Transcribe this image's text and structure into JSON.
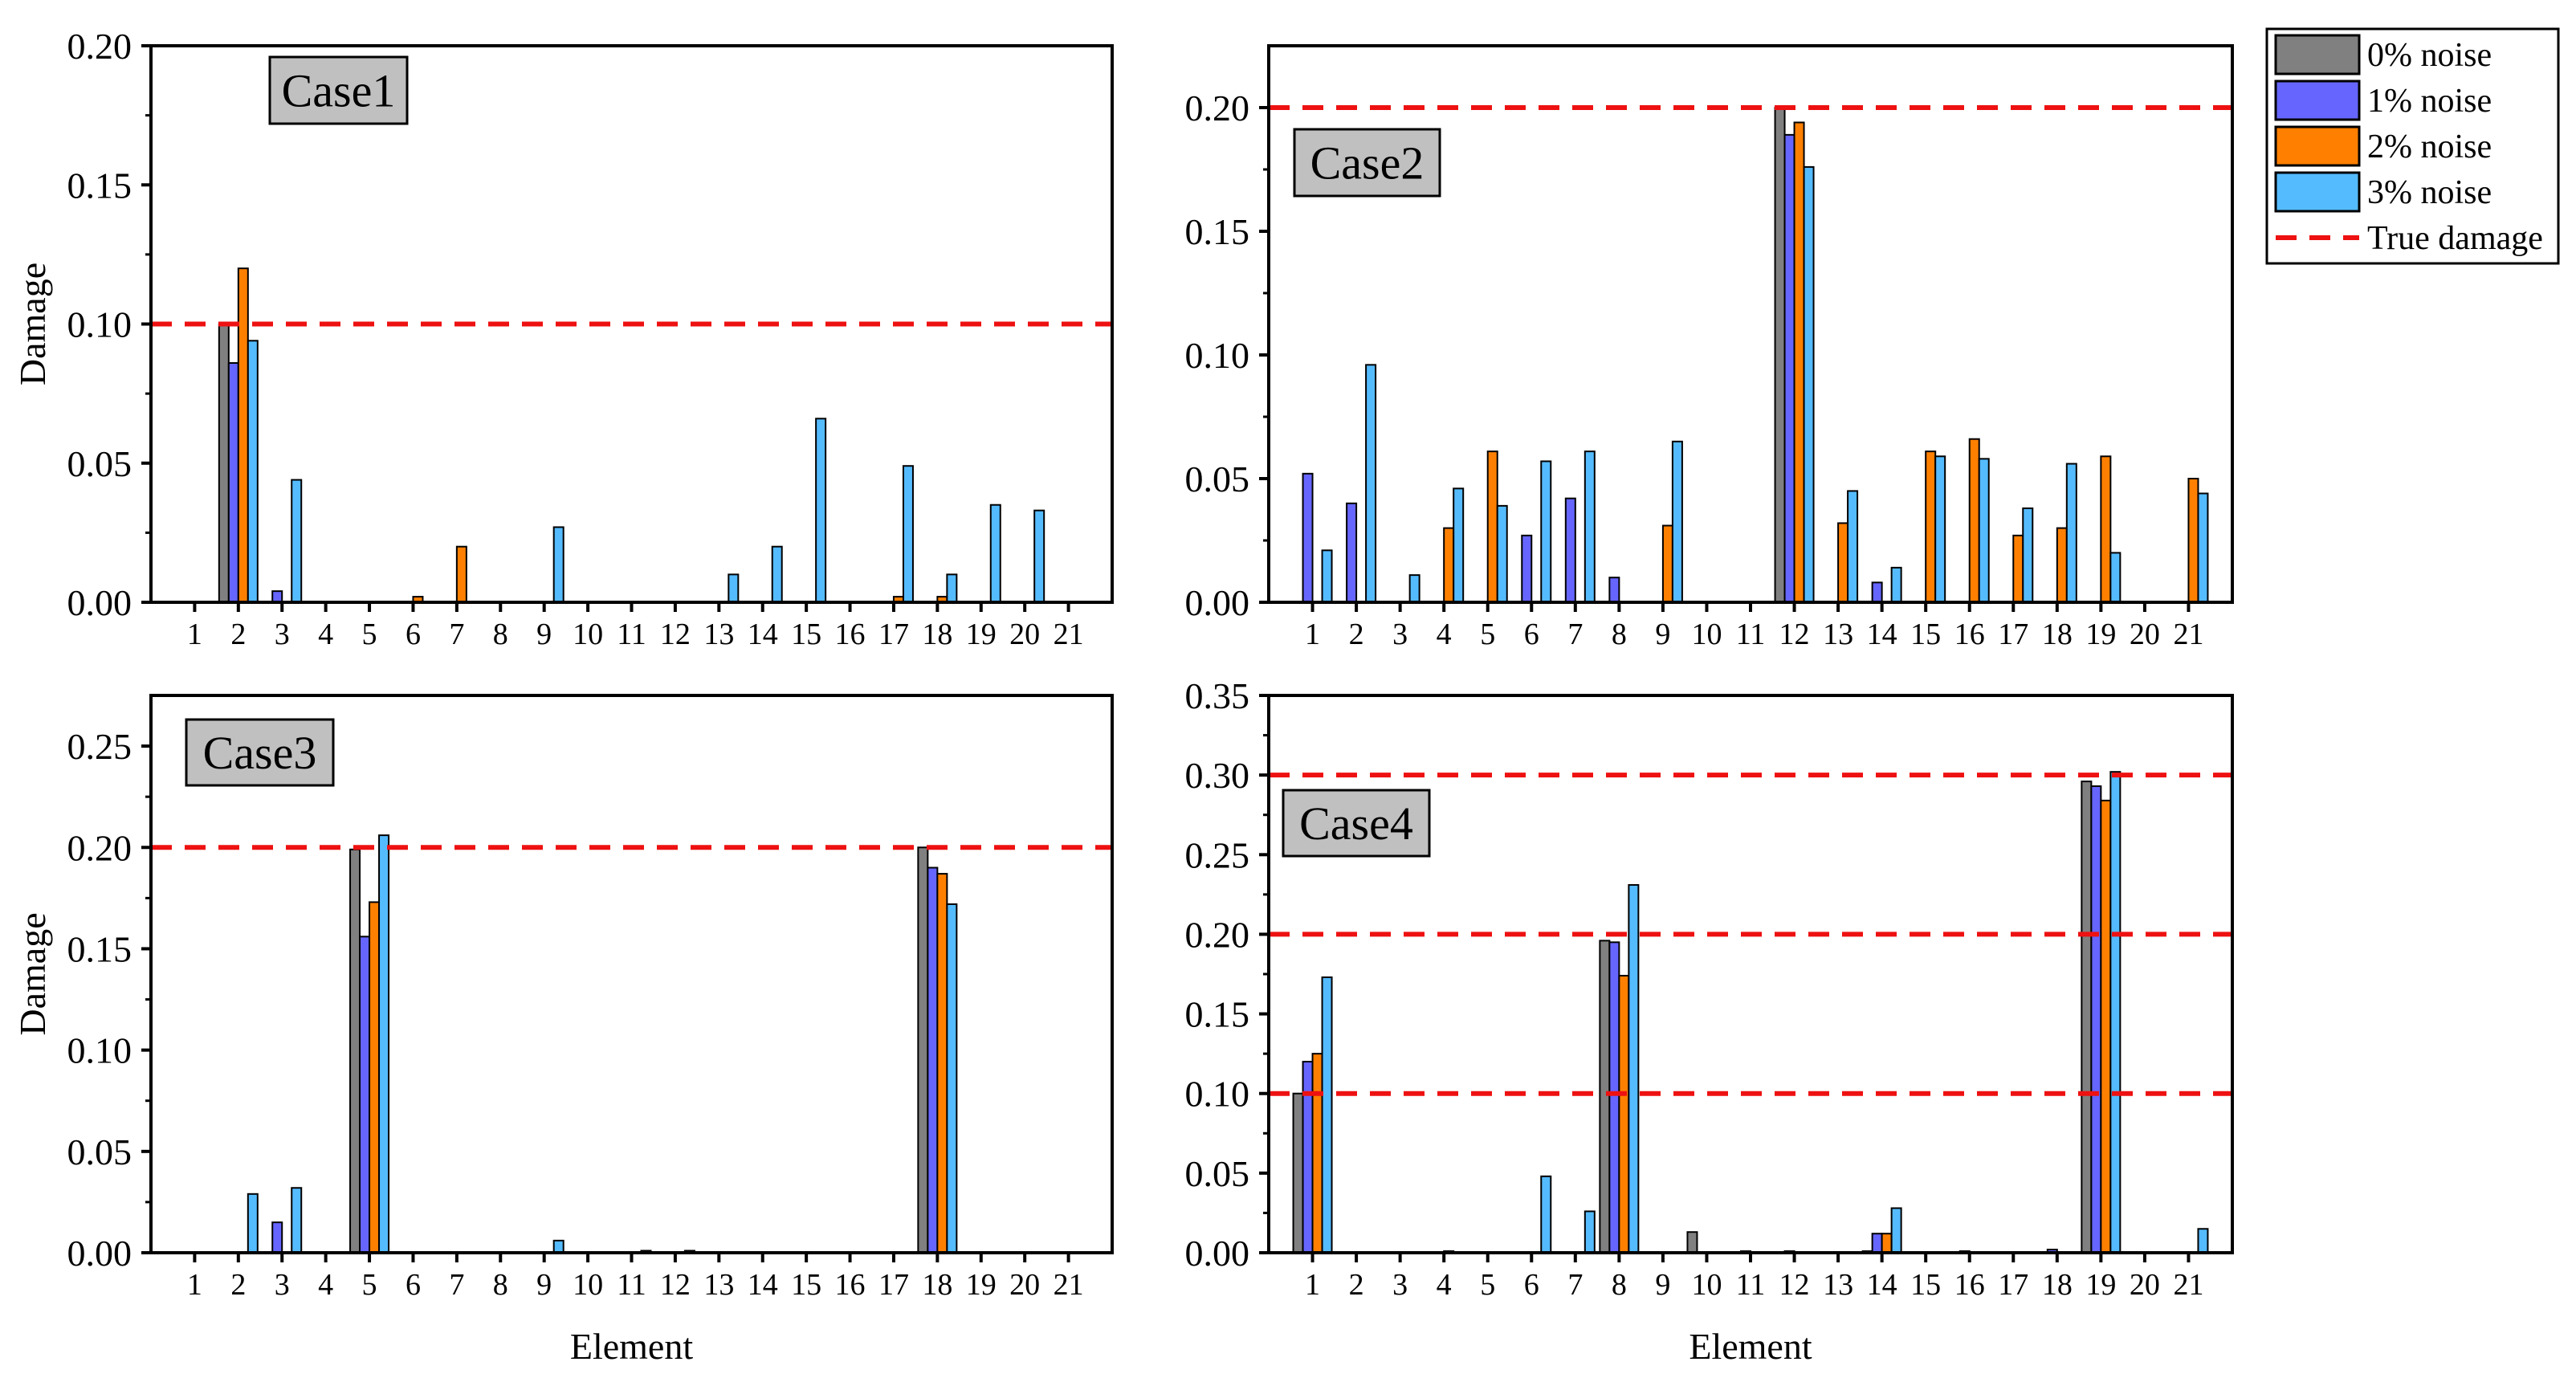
{
  "chart_data": [
    {
      "type": "bar",
      "panel": "top-left",
      "title": "Case1",
      "xlabel": "",
      "ylabel": "Damage",
      "ylim": [
        0,
        0.2
      ],
      "yticks": [
        0.0,
        0.05,
        0.1,
        0.15,
        0.2
      ],
      "ytick_labels": [
        "0.00",
        "0.05",
        "0.10",
        "0.15",
        "0.20"
      ],
      "categories": [
        "1",
        "2",
        "3",
        "4",
        "5",
        "6",
        "7",
        "8",
        "9",
        "10",
        "11",
        "12",
        "13",
        "14",
        "15",
        "16",
        "17",
        "18",
        "19",
        "20",
        "21"
      ],
      "true_damage": [
        0.1
      ],
      "series": [
        {
          "name": "0% noise",
          "values": [
            0,
            0.1,
            0,
            0,
            0,
            0,
            0,
            0,
            0,
            0,
            0,
            0,
            0,
            0,
            0,
            0,
            0,
            0,
            0,
            0,
            0
          ]
        },
        {
          "name": "1% noise",
          "values": [
            0,
            0.086,
            0.004,
            0,
            0,
            0,
            0,
            0,
            0,
            0,
            0,
            0,
            0,
            0,
            0,
            0,
            0,
            0,
            0,
            0,
            0
          ]
        },
        {
          "name": "2% noise",
          "values": [
            0,
            0.12,
            0,
            0,
            0,
            0.002,
            0.02,
            0,
            0,
            0,
            0,
            0,
            0,
            0,
            0,
            0,
            0.002,
            0.002,
            0,
            0,
            0
          ]
        },
        {
          "name": "3% noise",
          "values": [
            0,
            0.094,
            0.044,
            0,
            0,
            0,
            0,
            0,
            0.027,
            0,
            0,
            0,
            0.01,
            0.02,
            0.066,
            0,
            0.049,
            0.01,
            0.035,
            0.033,
            0
          ]
        }
      ]
    },
    {
      "type": "bar",
      "panel": "top-right",
      "title": "Case2",
      "xlabel": "",
      "ylabel": "",
      "ylim": [
        0,
        0.225
      ],
      "yticks": [
        0.0,
        0.05,
        0.1,
        0.15,
        0.2
      ],
      "ytick_labels": [
        "0.00",
        "0.05",
        "0.10",
        "0.15",
        "0.20"
      ],
      "categories": [
        "1",
        "2",
        "3",
        "4",
        "5",
        "6",
        "7",
        "8",
        "9",
        "10",
        "11",
        "12",
        "13",
        "14",
        "15",
        "16",
        "17",
        "18",
        "19",
        "20",
        "21"
      ],
      "true_damage": [
        0.2
      ],
      "series": [
        {
          "name": "0% noise",
          "values": [
            0,
            0,
            0,
            0,
            0,
            0,
            0,
            0,
            0,
            0,
            0,
            0.2,
            0,
            0,
            0,
            0,
            0,
            0,
            0,
            0,
            0
          ]
        },
        {
          "name": "1% noise",
          "values": [
            0.052,
            0.04,
            0,
            0,
            0,
            0.027,
            0.042,
            0.01,
            0,
            0,
            0,
            0.189,
            0,
            0.008,
            0,
            0,
            0,
            0,
            0,
            0,
            0
          ]
        },
        {
          "name": "2% noise",
          "values": [
            0,
            0,
            0,
            0.03,
            0.061,
            0,
            0,
            0,
            0.031,
            0,
            0,
            0.194,
            0.032,
            0,
            0.061,
            0.066,
            0.027,
            0.03,
            0.059,
            0,
            0.05
          ]
        },
        {
          "name": "3% noise",
          "values": [
            0.021,
            0.096,
            0.011,
            0.046,
            0.039,
            0.057,
            0.061,
            0,
            0.065,
            0,
            0,
            0.176,
            0.045,
            0.014,
            0.059,
            0.058,
            0.038,
            0.056,
            0.02,
            0,
            0.044
          ]
        }
      ]
    },
    {
      "type": "bar",
      "panel": "bottom-left",
      "title": "Case3",
      "xlabel": "Element",
      "ylabel": "Damage",
      "ylim": [
        0,
        0.275
      ],
      "yticks": [
        0.0,
        0.05,
        0.1,
        0.15,
        0.2,
        0.25
      ],
      "ytick_labels": [
        "0.00",
        "0.05",
        "0.10",
        "0.15",
        "0.20",
        "0.25"
      ],
      "categories": [
        "1",
        "2",
        "3",
        "4",
        "5",
        "6",
        "7",
        "8",
        "9",
        "10",
        "11",
        "12",
        "13",
        "14",
        "15",
        "16",
        "17",
        "18",
        "19",
        "20",
        "21"
      ],
      "true_damage": [
        0.2
      ],
      "series": [
        {
          "name": "0% noise",
          "values": [
            0,
            0,
            0,
            0,
            0.199,
            0,
            0,
            0,
            0,
            0,
            0,
            0,
            0,
            0,
            0,
            0,
            0,
            0.2,
            0,
            0,
            0
          ]
        },
        {
          "name": "1% noise",
          "values": [
            0,
            0,
            0.015,
            0,
            0.156,
            0,
            0,
            0,
            0,
            0,
            0,
            0,
            0,
            0,
            0,
            0,
            0,
            0.19,
            0,
            0,
            0
          ]
        },
        {
          "name": "2% noise",
          "values": [
            0,
            0,
            0,
            0,
            0.173,
            0,
            0,
            0,
            0,
            0,
            0,
            0,
            0,
            0,
            0,
            0,
            0,
            0.187,
            0,
            0,
            0
          ]
        },
        {
          "name": "3% noise",
          "values": [
            0,
            0.029,
            0.032,
            0,
            0.206,
            0,
            0,
            0,
            0.006,
            0,
            0.001,
            0.001,
            0,
            0,
            0,
            0,
            0,
            0.172,
            0,
            0,
            0
          ]
        }
      ]
    },
    {
      "type": "bar",
      "panel": "bottom-right",
      "title": "Case4",
      "xlabel": "Element",
      "ylabel": "",
      "ylim": [
        0,
        0.35
      ],
      "yticks": [
        0.0,
        0.05,
        0.1,
        0.15,
        0.2,
        0.25,
        0.3,
        0.35
      ],
      "ytick_labels": [
        "0.00",
        "0.05",
        "0.10",
        "0.15",
        "0.20",
        "0.25",
        "0.30",
        "0.35"
      ],
      "categories": [
        "1",
        "2",
        "3",
        "4",
        "5",
        "6",
        "7",
        "8",
        "9",
        "10",
        "11",
        "12",
        "13",
        "14",
        "15",
        "16",
        "17",
        "18",
        "19",
        "20",
        "21"
      ],
      "true_damage": [
        0.1,
        0.2,
        0.3
      ],
      "series": [
        {
          "name": "0% noise",
          "values": [
            0.1,
            0,
            0,
            0,
            0,
            0,
            0,
            0.196,
            0,
            0.013,
            0,
            0,
            0,
            0.001,
            0,
            0,
            0,
            0,
            0.296,
            0,
            0
          ]
        },
        {
          "name": "1% noise",
          "values": [
            0.12,
            0,
            0,
            0,
            0,
            0,
            0,
            0.195,
            0,
            0,
            0.001,
            0.001,
            0,
            0.012,
            0,
            0.001,
            0,
            0.002,
            0.293,
            0,
            0
          ]
        },
        {
          "name": "2% noise",
          "values": [
            0.125,
            0,
            0,
            0.001,
            0,
            0,
            0,
            0.174,
            0,
            0,
            0,
            0,
            0,
            0.012,
            0,
            0,
            0,
            0,
            0.284,
            0,
            0
          ]
        },
        {
          "name": "3% noise",
          "values": [
            0.173,
            0,
            0,
            0,
            0,
            0.048,
            0.026,
            0.231,
            0,
            0,
            0,
            0,
            0,
            0.028,
            0,
            0,
            0,
            0,
            0.302,
            0,
            0.015
          ]
        }
      ]
    }
  ],
  "legend": {
    "placement": "top-right",
    "entries": [
      {
        "label": "0% noise",
        "kind": "bar",
        "color": "#808080"
      },
      {
        "label": "1% noise",
        "kind": "bar",
        "color": "#6666FF"
      },
      {
        "label": "2% noise",
        "kind": "bar",
        "color": "#FF8000"
      },
      {
        "label": "3% noise",
        "kind": "bar",
        "color": "#55BBFF"
      },
      {
        "label": "True damage",
        "kind": "dashed-line",
        "color": "#EE1111"
      }
    ]
  },
  "colors": {
    "series": [
      "#808080",
      "#6666FF",
      "#FF8000",
      "#55BBFF"
    ],
    "true_damage": "#EE1111",
    "title_box": "#C0C0C0",
    "axis": "#000000"
  }
}
